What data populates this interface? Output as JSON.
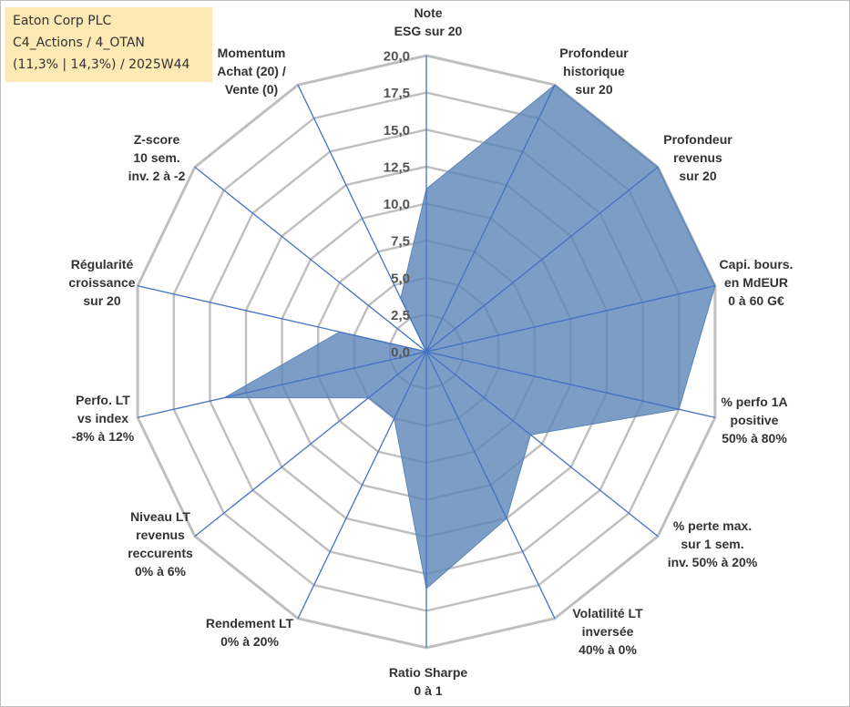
{
  "info": {
    "line1": "Eaton Corp PLC",
    "line2": "C4_Actions / 4_OTAN",
    "line3": "(11,3% | 14,3%) / 2025W44"
  },
  "colors": {
    "fill": "#5b85b8",
    "fill_opacity": 0.8,
    "grid": "#bfbfbf",
    "spoke": "#4472c4",
    "info_bg": "#fce9b4"
  },
  "chart_data": {
    "type": "radar",
    "rmin": 0,
    "rmax": 20,
    "tick_step": 2.5,
    "tick_labels": [
      "0,0",
      "2,5",
      "5,0",
      "7,5",
      "10,0",
      "12,5",
      "15,0",
      "17,5",
      "20,0"
    ],
    "axes": [
      {
        "label": [
          "Note",
          "ESG sur 20"
        ],
        "value": 11
      },
      {
        "label": [
          "Profondeur",
          "historique",
          "sur 20"
        ],
        "value": 20
      },
      {
        "label": [
          "Profondeur",
          "revenus",
          "sur 20"
        ],
        "value": 20
      },
      {
        "label": [
          "Capi. bours.",
          "en MdEUR",
          "0 à 60 G€"
        ],
        "value": 20
      },
      {
        "label": [
          "% perfo 1A",
          "positive",
          "50% à 80%"
        ],
        "value": 17.5
      },
      {
        "label": [
          "% perte max.",
          "sur 1 sem.",
          "inv. 50% à 20%"
        ],
        "value": 9
      },
      {
        "label": [
          "Volatilité LT",
          "inversée",
          "40% à 0%"
        ],
        "value": 12.5
      },
      {
        "label": [
          "Ratio Sharpe",
          "0 à 1"
        ],
        "value": 16
      },
      {
        "label": [
          "Rendement LT",
          "0% à 20%"
        ],
        "value": 5
      },
      {
        "label": [
          "Niveau LT",
          "revenus",
          "reccurents",
          "0% à 6%"
        ],
        "value": 5
      },
      {
        "label": [
          "Perfo. LT",
          "vs index",
          "-8% à 12%"
        ],
        "value": 14
      },
      {
        "label": [
          "Régularité",
          "croissance",
          "sur 20"
        ],
        "value": 6
      },
      {
        "label": [
          "Z-score",
          "10 sem.",
          "inv. 2 à -2"
        ],
        "value": 0
      },
      {
        "label": [
          "Momentum",
          "Achat (20) /",
          "Vente (0)"
        ],
        "value": 4
      }
    ]
  }
}
